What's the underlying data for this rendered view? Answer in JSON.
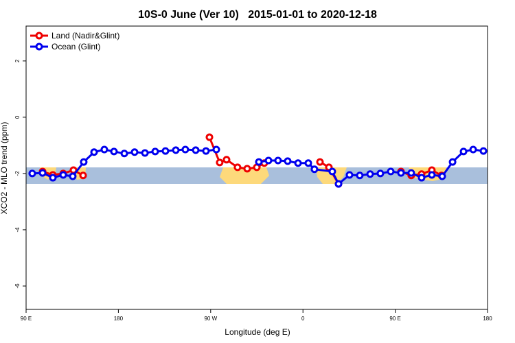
{
  "chart_data": {
    "type": "line",
    "title": "10S-0 June (Ver 10)   2015-01-01 to 2020-12-18",
    "xlabel": "Longitude (deg E)",
    "ylabel": "XCO2 - MLO trend (ppm)",
    "xlim": [
      90,
      540
    ],
    "xticks": [
      {
        "value": 90,
        "label": "90 E"
      },
      {
        "value": 180,
        "label": "180"
      },
      {
        "value": 270,
        "label": "90 W"
      },
      {
        "value": 360,
        "label": "0"
      },
      {
        "value": 450,
        "label": "90 E"
      },
      {
        "value": 540,
        "label": "180"
      }
    ],
    "ylim": [
      -6.83,
      3.24
    ],
    "yticks": [
      2,
      0,
      -2,
      -4,
      -6
    ],
    "legend": "top-left",
    "series": [
      {
        "name": "Land (Nadir&Glint)",
        "color": "#ee0000",
        "x": [
          106.1,
          116.1,
          126.2,
          136.2,
          145.6,
          null,
          268.8,
          278.8,
          285.5,
          296.2,
          305.6,
          315.0,
          322.3,
          null,
          376.6,
          385.3,
          394.7,
          null,
          455.6,
          465.6,
          475.7,
          485.7,
          495.1
        ],
        "values": [
          -1.93,
          -2.05,
          -2.0,
          -1.88,
          -2.07,
          null,
          -0.71,
          -1.61,
          -1.51,
          -1.78,
          -1.83,
          -1.78,
          -1.63,
          null,
          -1.59,
          -1.78,
          -2.37,
          null,
          -1.93,
          -2.07,
          -2.02,
          -1.88,
          -2.07
        ]
      },
      {
        "name": "Ocean (Glint)",
        "color": "#0000ee",
        "x": [
          96.0,
          106.1,
          116.1,
          126.2,
          135.5,
          146.2,
          156.3,
          166.3,
          175.7,
          185.8,
          195.8,
          205.9,
          215.9,
          225.9,
          236.0,
          245.3,
          255.4,
          265.4,
          275.5,
          null,
          317.0,
          326.4,
          335.7,
          345.1,
          355.2,
          365.2,
          371.2,
          388.6,
          394.7,
          405.4,
          415.4,
          425.5,
          435.5,
          445.6,
          455.6,
          465.6,
          475.7,
          485.7,
          495.8,
          505.9,
          516.6,
          526.0,
          536.0
        ],
        "values": [
          -2.0,
          -1.98,
          -2.15,
          -2.05,
          -2.1,
          -1.59,
          -1.24,
          -1.15,
          -1.22,
          -1.29,
          -1.24,
          -1.27,
          -1.22,
          -1.2,
          -1.17,
          -1.15,
          -1.17,
          -1.2,
          -1.15,
          null,
          -1.59,
          -1.54,
          -1.54,
          -1.56,
          -1.63,
          -1.63,
          -1.85,
          -1.93,
          -2.37,
          -2.05,
          -2.07,
          -2.02,
          -2.0,
          -1.93,
          -1.98,
          -1.98,
          -2.15,
          -2.05,
          -2.1,
          -1.59,
          -1.22,
          -1.15,
          -1.2
        ]
      }
    ]
  }
}
